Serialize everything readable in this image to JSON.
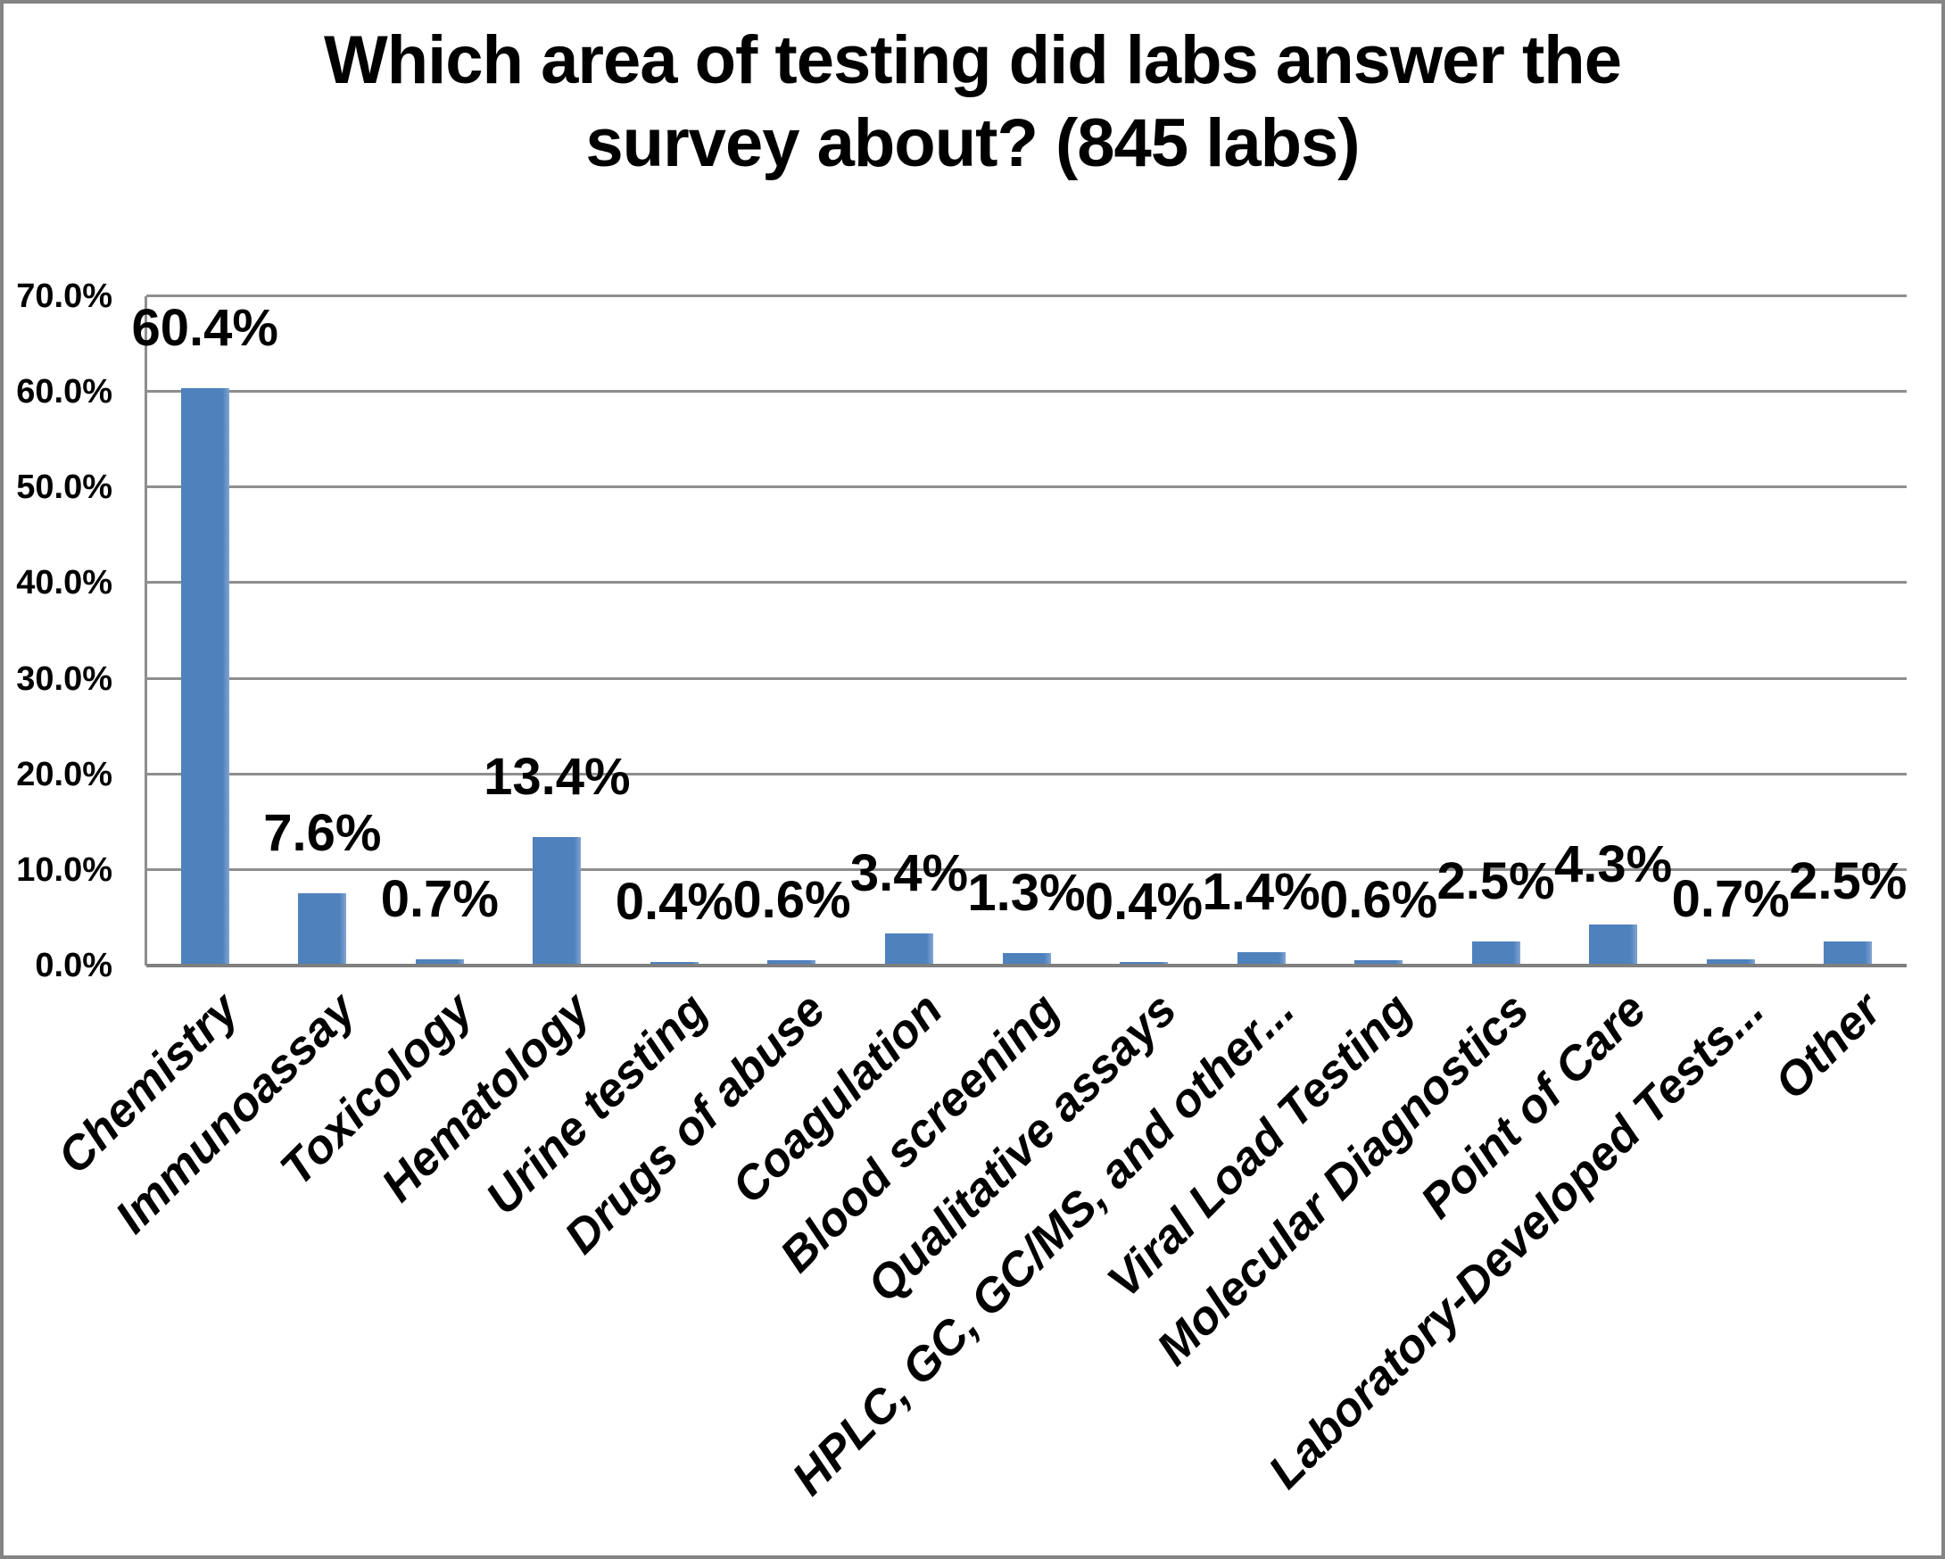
{
  "chart_data": {
    "type": "bar",
    "title": "Which area of testing did labs answer the survey about? (845 labs)",
    "title_lines": [
      "Which area of testing did labs answer the",
      "survey about? (845 labs)"
    ],
    "categories": [
      "Chemistry",
      "Immunoassay",
      "Toxicology",
      "Hematology",
      "Urine testing",
      "Drugs of abuse",
      "Coagulation",
      "Blood screening",
      "Qualitative assays",
      "HPLC, GC, GC/MS, and other...",
      "Viral Load Testing",
      "Molecular Diagnostics",
      "Point of Care",
      "Laboratory-Developed Tests...",
      "Other"
    ],
    "values": [
      60.4,
      7.6,
      0.7,
      13.4,
      0.4,
      0.6,
      3.4,
      1.3,
      0.4,
      1.4,
      0.6,
      2.5,
      4.3,
      0.7,
      2.5
    ],
    "value_labels": [
      "60.4%",
      "7.6%",
      "0.7%",
      "13.4%",
      "0.4%",
      "0.6%",
      "3.4%",
      "1.3%",
      "0.4%",
      "1.4%",
      "0.6%",
      "2.5%",
      "4.3%",
      "0.7%",
      "2.5%"
    ],
    "y_axis": {
      "tick_labels": [
        "0.0%",
        "10.0%",
        "20.0%",
        "30.0%",
        "40.0%",
        "50.0%",
        "60.0%",
        "70.0%"
      ],
      "min": 0,
      "max": 70,
      "step": 10
    },
    "xlabel": "",
    "ylabel": "",
    "legend": "none",
    "grid": true,
    "colors": {
      "bar_fill": "#4F81BD",
      "bar_edge_highlight": "#82A5D2",
      "gridline": "#8E8E8E",
      "axis_line": "#7F7F7F",
      "text": "#000000",
      "background": "#FFFFFF",
      "frame_border": "#848484"
    }
  }
}
